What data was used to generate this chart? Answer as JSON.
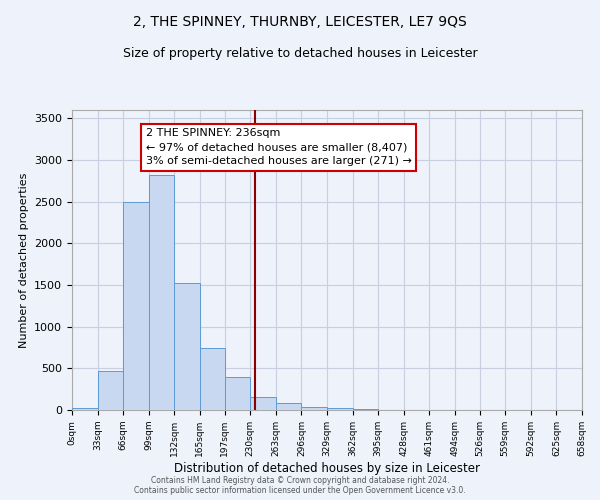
{
  "title": "2, THE SPINNEY, THURNBY, LEICESTER, LE7 9QS",
  "subtitle": "Size of property relative to detached houses in Leicester",
  "xlabel": "Distribution of detached houses by size in Leicester",
  "ylabel": "Number of detached properties",
  "bin_edges": [
    0,
    33,
    66,
    99,
    132,
    165,
    197,
    230,
    263,
    296,
    329,
    362,
    395,
    428,
    461,
    494,
    526,
    559,
    592,
    625,
    658
  ],
  "bar_heights": [
    30,
    470,
    2500,
    2820,
    1530,
    750,
    400,
    155,
    80,
    35,
    20,
    10,
    5,
    0,
    0,
    0,
    0,
    0,
    0,
    0
  ],
  "bar_color": "#c8d8f0",
  "bar_edge_color": "#5b9bd5",
  "vline_x": 236,
  "vline_color": "#8b0000",
  "annotation_line1": "2 THE SPINNEY: 236sqm",
  "annotation_line2": "← 97% of detached houses are smaller (8,407)",
  "annotation_line3": "3% of semi-detached houses are larger (271) →",
  "annotation_box_color": "white",
  "annotation_box_edgecolor": "#cc0000",
  "ylim": [
    0,
    3600
  ],
  "yticks": [
    0,
    500,
    1000,
    1500,
    2000,
    2500,
    3000,
    3500
  ],
  "tick_labels": [
    "0sqm",
    "33sqm",
    "66sqm",
    "99sqm",
    "132sqm",
    "165sqm",
    "197sqm",
    "230sqm",
    "263sqm",
    "296sqm",
    "329sqm",
    "362sqm",
    "395sqm",
    "428sqm",
    "461sqm",
    "494sqm",
    "526sqm",
    "559sqm",
    "592sqm",
    "625sqm",
    "658sqm"
  ],
  "footer1": "Contains HM Land Registry data © Crown copyright and database right 2024.",
  "footer2": "Contains public sector information licensed under the Open Government Licence v3.0.",
  "bg_color": "#eef2fa",
  "grid_color": "#c8cfe0",
  "title_fontsize": 10,
  "subtitle_fontsize": 9,
  "annotation_fontsize": 8
}
